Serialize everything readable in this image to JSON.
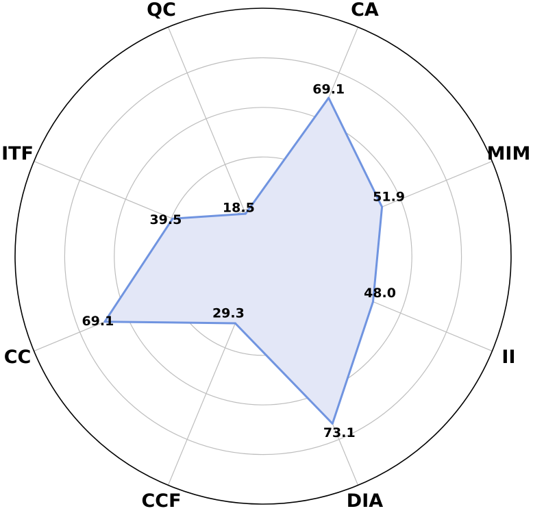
{
  "chart_data": {
    "type": "radar",
    "categories": [
      "CA",
      "MIM",
      "II",
      "DIA",
      "CCF",
      "CC",
      "ITF",
      "QC"
    ],
    "series": [
      {
        "values": [
          69.1,
          51.9,
          48.0,
          73.1,
          29.3,
          69.1,
          39.5,
          18.5
        ]
      }
    ],
    "value_labels": [
      "69.1",
      "51.9",
      "48.0",
      "73.1",
      "29.3",
      "69.1",
      "39.5",
      "18.5"
    ],
    "rlim": [
      0,
      100
    ],
    "grid": true,
    "colors": {
      "line": "#7094e0",
      "fill": "#e3e7f7",
      "grid": "#bdbdbd",
      "frame": "#000000"
    }
  }
}
